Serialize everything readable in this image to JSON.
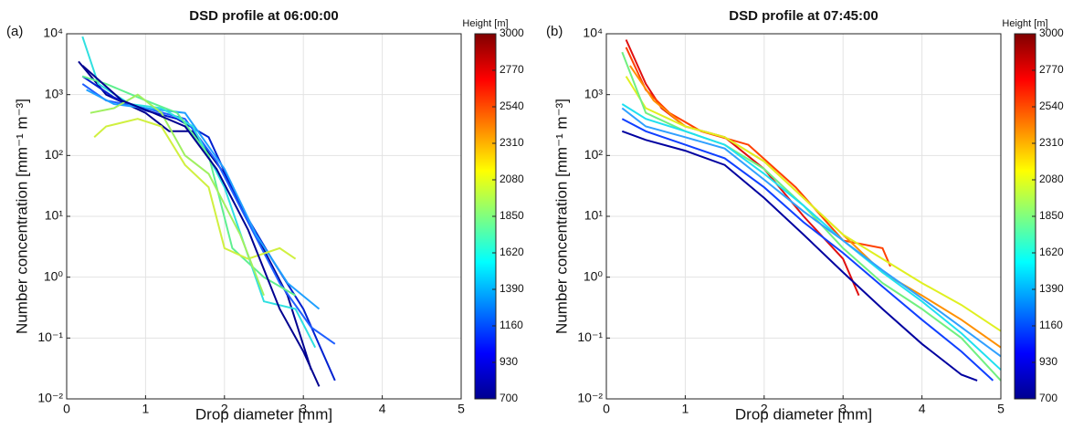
{
  "chart_data": [
    {
      "type": "line",
      "panel_label": "(a)",
      "title": "DSD profile at 06:00:00",
      "xlabel": "Drop diameter [mm]",
      "ylabel": "Number concentration [mm⁻¹ m⁻³]",
      "xlim": [
        0,
        5
      ],
      "xticks": [
        0,
        1,
        2,
        3,
        4,
        5
      ],
      "ylim": [
        0.01,
        10000
      ],
      "log_y": true,
      "grid": true,
      "yticks": [
        {
          "value": 0.01,
          "label": "10⁻²"
        },
        {
          "value": 0.1,
          "label": "10⁻¹"
        },
        {
          "value": 1,
          "label": "10⁰"
        },
        {
          "value": 10,
          "label": "10¹"
        },
        {
          "value": 100,
          "label": "10²"
        },
        {
          "value": 1000,
          "label": "10³"
        },
        {
          "value": 10000,
          "label": "10⁴"
        }
      ],
      "colorbar": {
        "label": "Height [m]",
        "lim": [
          700,
          3000
        ],
        "ticks": [
          700,
          930,
          1160,
          1390,
          1620,
          1850,
          2080,
          2310,
          2540,
          2770,
          3000
        ]
      },
      "series": [
        {
          "color": "#00008f",
          "x": [
            0.15,
            0.5,
            1,
            1.3,
            1.6,
            2,
            2.4,
            2.8,
            3.1
          ],
          "values": [
            3500,
            1000,
            500,
            250,
            250,
            50,
            5,
            0.5,
            0.03
          ]
        },
        {
          "color": "#0020d0",
          "x": [
            0.2,
            0.6,
            1,
            1.4,
            1.8,
            2.2,
            2.6,
            3.0,
            3.4
          ],
          "values": [
            2000,
            900,
            550,
            400,
            200,
            15,
            2,
            0.3,
            0.02
          ]
        },
        {
          "color": "#2060ff",
          "x": [
            0.2,
            0.5,
            1,
            1.5,
            1.9,
            2.3,
            2.7,
            3.1,
            3.4
          ],
          "values": [
            1500,
            800,
            600,
            400,
            80,
            8,
            0.8,
            0.15,
            0.08
          ]
        },
        {
          "color": "#20a0ff",
          "x": [
            0.25,
            0.6,
            1.0,
            1.5,
            2.0,
            2.4,
            2.8,
            3.2
          ],
          "values": [
            1200,
            700,
            600,
            500,
            60,
            5,
            0.8,
            0.3
          ]
        },
        {
          "color": "#30e0e0",
          "x": [
            0.2,
            0.4,
            0.8,
            1.2,
            1.6,
            2.0,
            2.5,
            2.9,
            3.15
          ],
          "values": [
            9000,
            1500,
            700,
            600,
            300,
            30,
            0.4,
            0.3,
            0.07
          ]
        },
        {
          "color": "#60f090",
          "x": [
            0.2,
            0.5,
            1,
            1.4,
            1.8,
            2.1,
            2.5,
            2.9
          ],
          "values": [
            2000,
            1500,
            800,
            500,
            100,
            3,
            1,
            0.5
          ]
        },
        {
          "color": "#d0f040",
          "x": [
            0.35,
            0.5,
            0.9,
            1.2,
            1.5,
            1.8,
            2.0,
            2.3,
            2.7,
            2.9
          ],
          "values": [
            200,
            300,
            400,
            300,
            70,
            30,
            3,
            2,
            3,
            2
          ]
        },
        {
          "color": "#a0f060",
          "x": [
            0.3,
            0.6,
            0.9,
            1.2,
            1.5,
            1.8,
            2.2,
            2.5
          ],
          "values": [
            500,
            600,
            1000,
            500,
            100,
            50,
            5,
            0.5
          ]
        },
        {
          "color": "#000090",
          "x": [
            0.2,
            0.7,
            1.1,
            1.5,
            1.9,
            2.3,
            2.7,
            3.0,
            3.2
          ],
          "values": [
            3000,
            800,
            500,
            300,
            60,
            6,
            0.3,
            0.06,
            0.016
          ]
        }
      ]
    },
    {
      "type": "line",
      "panel_label": "(b)",
      "title": "DSD profile at 07:45:00",
      "xlabel": "Drop diameter [mm]",
      "ylabel": "Number concentration [mm⁻¹ m⁻³]",
      "xlim": [
        0,
        5
      ],
      "xticks": [
        0,
        1,
        2,
        3,
        4,
        5
      ],
      "ylim": [
        0.01,
        10000
      ],
      "log_y": true,
      "grid": true,
      "yticks": [
        {
          "value": 0.01,
          "label": "10⁻²"
        },
        {
          "value": 0.1,
          "label": "10⁻¹"
        },
        {
          "value": 1,
          "label": "10⁰"
        },
        {
          "value": 10,
          "label": "10¹"
        },
        {
          "value": 100,
          "label": "10²"
        },
        {
          "value": 1000,
          "label": "10³"
        },
        {
          "value": 10000,
          "label": "10⁴"
        }
      ],
      "colorbar": {
        "label": "Height [m]",
        "lim": [
          700,
          3000
        ],
        "ticks": [
          700,
          930,
          1160,
          1390,
          1620,
          1850,
          2080,
          2310,
          2540,
          2770,
          3000
        ]
      },
      "series": [
        {
          "color": "#e01010",
          "x": [
            0.25,
            0.5,
            0.7,
            1,
            1.5,
            2,
            2.5,
            3,
            3.2
          ],
          "values": [
            8000,
            1500,
            600,
            300,
            200,
            60,
            10,
            2,
            0.5
          ]
        },
        {
          "color": "#ff4000",
          "x": [
            0.25,
            0.5,
            0.8,
            1.2,
            1.8,
            2.4,
            3,
            3.5,
            3.6
          ],
          "values": [
            6000,
            1200,
            500,
            250,
            150,
            30,
            4,
            3,
            1.5
          ]
        },
        {
          "color": "#ff9000",
          "x": [
            0.3,
            0.6,
            1,
            1.5,
            2,
            2.5,
            3,
            3.5,
            4,
            4.5,
            5
          ],
          "values": [
            3000,
            800,
            300,
            200,
            80,
            20,
            5,
            1.2,
            0.5,
            0.2,
            0.07
          ]
        },
        {
          "color": "#e0f020",
          "x": [
            0.25,
            0.5,
            1,
            1.5,
            2,
            2.5,
            3,
            3.5,
            4,
            4.5,
            5
          ],
          "values": [
            2000,
            600,
            300,
            200,
            80,
            20,
            5,
            2,
            0.8,
            0.35,
            0.13
          ]
        },
        {
          "color": "#70f080",
          "x": [
            0.2,
            0.5,
            1,
            1.5,
            2,
            2.5,
            3,
            3.5,
            4,
            4.5,
            5
          ],
          "values": [
            5000,
            500,
            250,
            150,
            60,
            15,
            3,
            0.8,
            0.3,
            0.1,
            0.02
          ]
        },
        {
          "color": "#20e0f0",
          "x": [
            0.2,
            0.5,
            1,
            1.5,
            2,
            2.5,
            3,
            3.5,
            4,
            4.5,
            5
          ],
          "values": [
            700,
            400,
            250,
            150,
            50,
            15,
            4,
            1.2,
            0.4,
            0.12,
            0.03
          ]
        },
        {
          "color": "#30a0ff",
          "x": [
            0.2,
            0.5,
            1,
            1.5,
            2,
            2.5,
            3,
            3.5,
            4,
            4.5,
            5
          ],
          "values": [
            600,
            300,
            200,
            130,
            40,
            12,
            4,
            1.3,
            0.45,
            0.15,
            0.05
          ]
        },
        {
          "color": "#1040ff",
          "x": [
            0.2,
            0.5,
            1,
            1.5,
            2,
            2.5,
            3,
            3.5,
            4,
            4.5,
            4.9
          ],
          "values": [
            400,
            250,
            150,
            90,
            30,
            8,
            2.5,
            0.7,
            0.2,
            0.06,
            0.02
          ]
        },
        {
          "color": "#0000a0",
          "x": [
            0.2,
            0.5,
            1,
            1.5,
            2,
            2.5,
            3,
            3.5,
            4,
            4.5,
            4.7
          ],
          "values": [
            250,
            180,
            120,
            70,
            20,
            5,
            1.2,
            0.3,
            0.08,
            0.025,
            0.02
          ]
        }
      ]
    }
  ]
}
